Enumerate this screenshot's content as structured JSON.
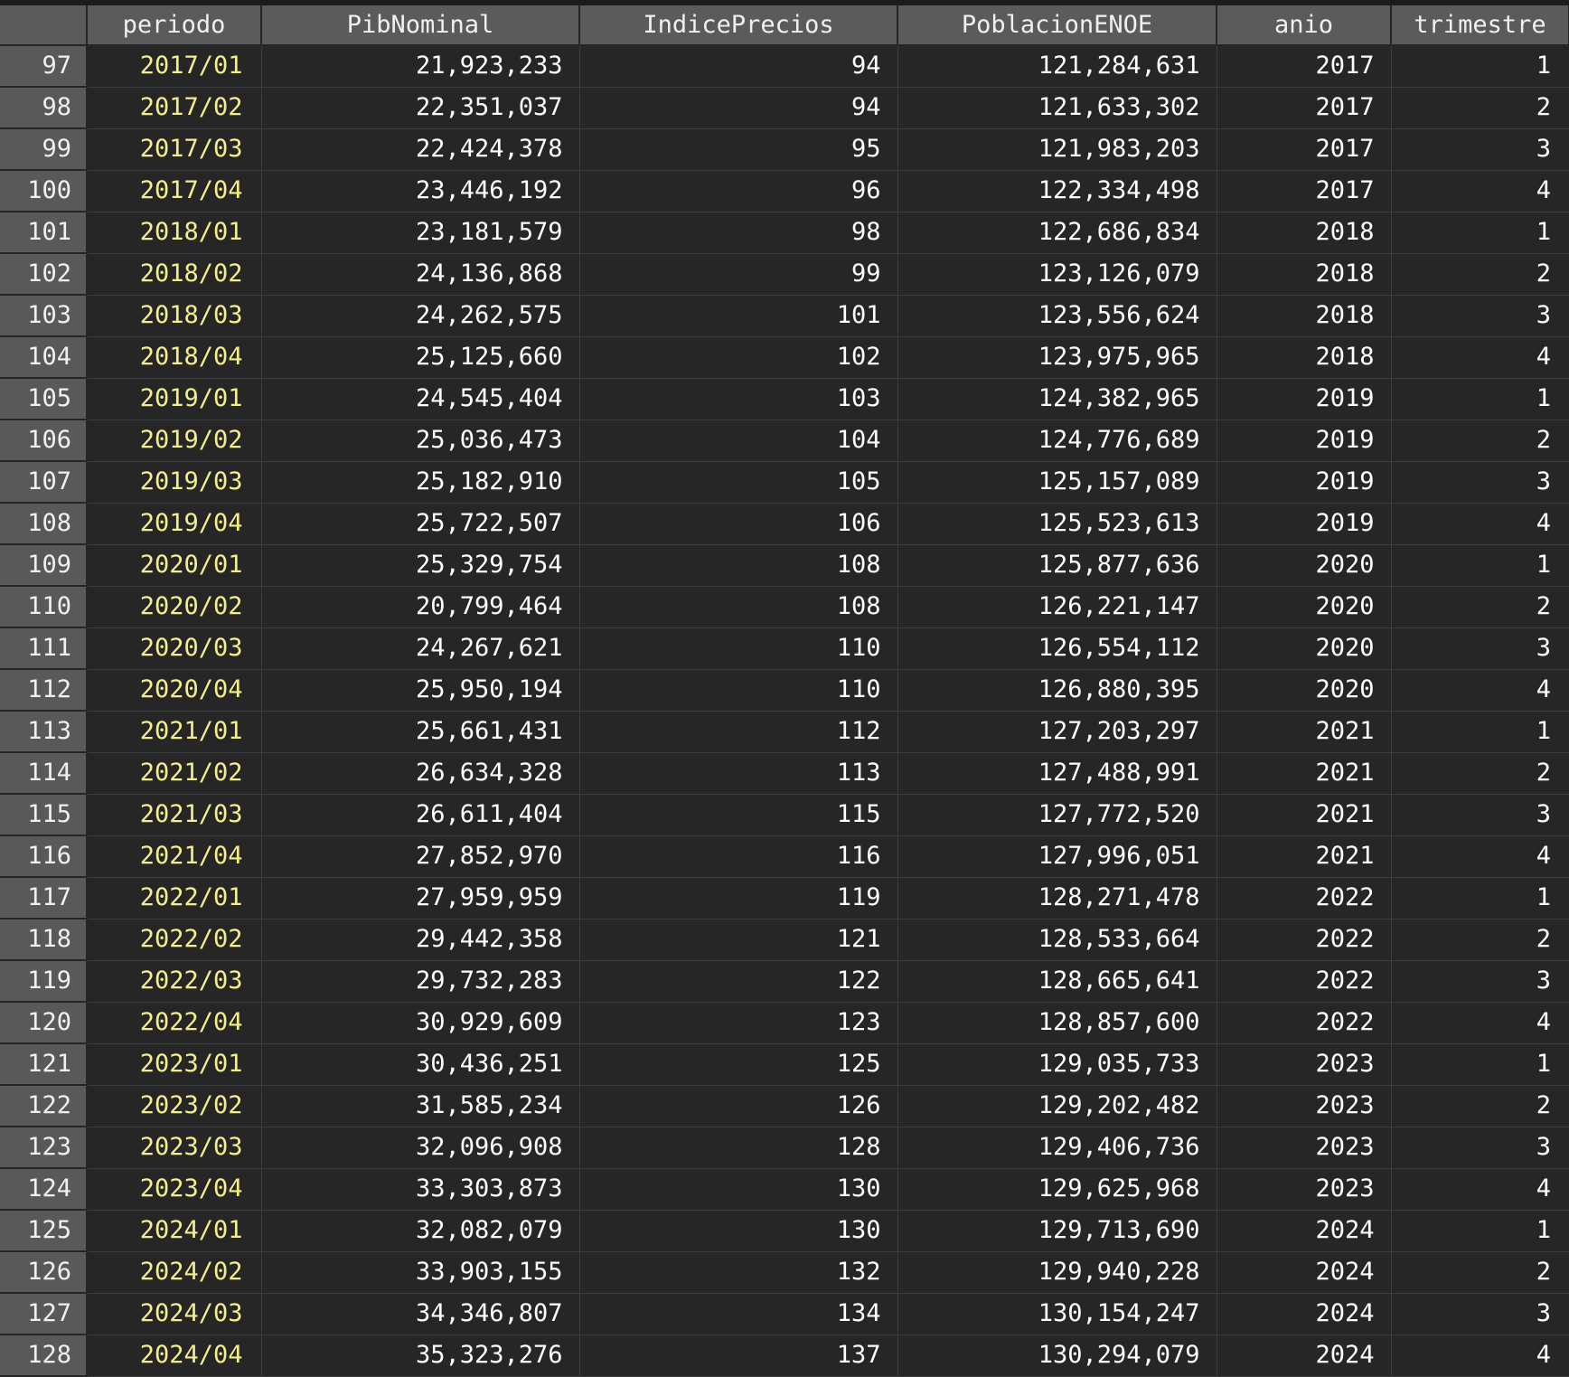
{
  "columns": [
    "",
    "periodo",
    "PibNominal",
    "IndicePrecios",
    "PoblacionENOE",
    "anio",
    "trimestre"
  ],
  "rows": [
    [
      "97",
      "2017/01",
      "21,923,233",
      "94",
      "121,284,631",
      "2017",
      "1"
    ],
    [
      "98",
      "2017/02",
      "22,351,037",
      "94",
      "121,633,302",
      "2017",
      "2"
    ],
    [
      "99",
      "2017/03",
      "22,424,378",
      "95",
      "121,983,203",
      "2017",
      "3"
    ],
    [
      "100",
      "2017/04",
      "23,446,192",
      "96",
      "122,334,498",
      "2017",
      "4"
    ],
    [
      "101",
      "2018/01",
      "23,181,579",
      "98",
      "122,686,834",
      "2018",
      "1"
    ],
    [
      "102",
      "2018/02",
      "24,136,868",
      "99",
      "123,126,079",
      "2018",
      "2"
    ],
    [
      "103",
      "2018/03",
      "24,262,575",
      "101",
      "123,556,624",
      "2018",
      "3"
    ],
    [
      "104",
      "2018/04",
      "25,125,660",
      "102",
      "123,975,965",
      "2018",
      "4"
    ],
    [
      "105",
      "2019/01",
      "24,545,404",
      "103",
      "124,382,965",
      "2019",
      "1"
    ],
    [
      "106",
      "2019/02",
      "25,036,473",
      "104",
      "124,776,689",
      "2019",
      "2"
    ],
    [
      "107",
      "2019/03",
      "25,182,910",
      "105",
      "125,157,089",
      "2019",
      "3"
    ],
    [
      "108",
      "2019/04",
      "25,722,507",
      "106",
      "125,523,613",
      "2019",
      "4"
    ],
    [
      "109",
      "2020/01",
      "25,329,754",
      "108",
      "125,877,636",
      "2020",
      "1"
    ],
    [
      "110",
      "2020/02",
      "20,799,464",
      "108",
      "126,221,147",
      "2020",
      "2"
    ],
    [
      "111",
      "2020/03",
      "24,267,621",
      "110",
      "126,554,112",
      "2020",
      "3"
    ],
    [
      "112",
      "2020/04",
      "25,950,194",
      "110",
      "126,880,395",
      "2020",
      "4"
    ],
    [
      "113",
      "2021/01",
      "25,661,431",
      "112",
      "127,203,297",
      "2021",
      "1"
    ],
    [
      "114",
      "2021/02",
      "26,634,328",
      "113",
      "127,488,991",
      "2021",
      "2"
    ],
    [
      "115",
      "2021/03",
      "26,611,404",
      "115",
      "127,772,520",
      "2021",
      "3"
    ],
    [
      "116",
      "2021/04",
      "27,852,970",
      "116",
      "127,996,051",
      "2021",
      "4"
    ],
    [
      "117",
      "2022/01",
      "27,959,959",
      "119",
      "128,271,478",
      "2022",
      "1"
    ],
    [
      "118",
      "2022/02",
      "29,442,358",
      "121",
      "128,533,664",
      "2022",
      "2"
    ],
    [
      "119",
      "2022/03",
      "29,732,283",
      "122",
      "128,665,641",
      "2022",
      "3"
    ],
    [
      "120",
      "2022/04",
      "30,929,609",
      "123",
      "128,857,600",
      "2022",
      "4"
    ],
    [
      "121",
      "2023/01",
      "30,436,251",
      "125",
      "129,035,733",
      "2023",
      "1"
    ],
    [
      "122",
      "2023/02",
      "31,585,234",
      "126",
      "129,202,482",
      "2023",
      "2"
    ],
    [
      "123",
      "2023/03",
      "32,096,908",
      "128",
      "129,406,736",
      "2023",
      "3"
    ],
    [
      "124",
      "2023/04",
      "33,303,873",
      "130",
      "129,625,968",
      "2023",
      "4"
    ],
    [
      "125",
      "2024/01",
      "32,082,079",
      "130",
      "129,713,690",
      "2024",
      "1"
    ],
    [
      "126",
      "2024/02",
      "33,903,155",
      "132",
      "129,940,228",
      "2024",
      "2"
    ],
    [
      "127",
      "2024/03",
      "34,346,807",
      "134",
      "130,154,247",
      "2024",
      "3"
    ],
    [
      "128",
      "2024/04",
      "35,323,276",
      "137",
      "130,294,079",
      "2024",
      "4"
    ]
  ]
}
